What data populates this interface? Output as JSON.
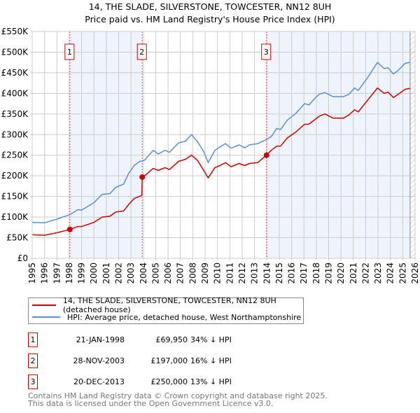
{
  "title": {
    "line1": "14, THE SLADE, SILVERSTONE, TOWCESTER, NN12 8UH",
    "line2": "Price paid vs. HM Land Registry's House Price Index (HPI)"
  },
  "chart_data": {
    "type": "line",
    "title": "14, THE SLADE, SILVERSTONE, TOWCESTER, NN12 8UH - Price paid vs. HM Land Registry's House Price Index (HPI)",
    "xlim": [
      1995,
      2026
    ],
    "ylim": [
      0,
      550000
    ],
    "xticks": [
      "1995",
      "1996",
      "1997",
      "1998",
      "1999",
      "2000",
      "2001",
      "2002",
      "2003",
      "2004",
      "2005",
      "2006",
      "2007",
      "2008",
      "2009",
      "2010",
      "2011",
      "2012",
      "2013",
      "2014",
      "2015",
      "2016",
      "2017",
      "2018",
      "2019",
      "2020",
      "2021",
      "2022",
      "2023",
      "2024",
      "2025",
      "2026"
    ],
    "yticks": [
      {
        "v": 0,
        "label": "£0"
      },
      {
        "v": 50000,
        "label": "£50K"
      },
      {
        "v": 100000,
        "label": "£100K"
      },
      {
        "v": 150000,
        "label": "£150K"
      },
      {
        "v": 200000,
        "label": "£200K"
      },
      {
        "v": 250000,
        "label": "£250K"
      },
      {
        "v": 300000,
        "label": "£300K"
      },
      {
        "v": 350000,
        "label": "£350K"
      },
      {
        "v": 400000,
        "label": "£400K"
      },
      {
        "v": 450000,
        "label": "£450K"
      },
      {
        "v": 500000,
        "label": "£500K"
      },
      {
        "v": 550000,
        "label": "£550K"
      }
    ],
    "grid": true,
    "shaded_ranges": [
      [
        1998.05,
        2003.91
      ],
      [
        2013.97,
        2025.6
      ]
    ],
    "forecast_hatch_from": 2025.6,
    "colors": {
      "property": "#cc0000",
      "hpi": "#5b8fd0",
      "shade": "#eef3fc",
      "marker_line": "#e05050"
    },
    "series": [
      {
        "name": "14, THE SLADE, SILVERSTONE, TOWCESTER, NN12 8UH (detached house)",
        "x": [
          1995,
          1996,
          1997,
          1998.05,
          1998.7,
          1999,
          2000,
          2000.65,
          2001.3,
          2001.75,
          2002.4,
          2002.8,
          2003.25,
          2003.7,
          2003.88,
          2003.91,
          2004.1,
          2004.8,
          2005.2,
          2005.75,
          2006.1,
          2006.85,
          2007.4,
          2007.9,
          2008.4,
          2008.9,
          2009.25,
          2009.8,
          2010.2,
          2010.65,
          2011.1,
          2011.75,
          2012.2,
          2012.6,
          2013.25,
          2013.97,
          2014.35,
          2014.8,
          2015.1,
          2015.65,
          2016.3,
          2017.05,
          2017.4,
          2017.95,
          2018.25,
          2018.7,
          2019.35,
          2020.2,
          2020.65,
          2021.1,
          2021.4,
          2022.2,
          2022.95,
          2023.5,
          2023.8,
          2024.25,
          2024.6,
          2025.2,
          2025.6
        ],
        "y": [
          57000,
          56000,
          62000,
          69950,
          77000,
          77000,
          87000,
          100000,
          102000,
          112000,
          115000,
          130000,
          145000,
          150000,
          153000,
          197000,
          200000,
          218000,
          213000,
          220000,
          215000,
          235000,
          240000,
          250000,
          237000,
          212000,
          195000,
          220000,
          225000,
          232000,
          222000,
          230000,
          225000,
          230000,
          232000,
          250000,
          262000,
          272000,
          272000,
          292000,
          305000,
          325000,
          325000,
          338000,
          345000,
          350000,
          340000,
          340000,
          348000,
          360000,
          355000,
          385000,
          413000,
          400000,
          403000,
          390000,
          397000,
          410000,
          412000
        ]
      },
      {
        "name": "HPI: Average price, detached house, West Northamptonshire",
        "x": [
          1995,
          1996,
          1997,
          1998.05,
          1998.7,
          1999,
          2000,
          2000.65,
          2001.3,
          2001.75,
          2002.4,
          2002.8,
          2003.25,
          2003.7,
          2003.91,
          2004.1,
          2004.8,
          2005.2,
          2005.75,
          2006.1,
          2006.85,
          2007.4,
          2007.9,
          2008.4,
          2008.9,
          2009.25,
          2009.8,
          2010.2,
          2010.65,
          2011.1,
          2011.75,
          2012.2,
          2012.6,
          2013.25,
          2013.97,
          2014.35,
          2014.8,
          2015.1,
          2015.65,
          2016.3,
          2017.05,
          2017.4,
          2017.95,
          2018.25,
          2018.7,
          2019.35,
          2020.2,
          2020.65,
          2021.1,
          2021.4,
          2022.2,
          2022.95,
          2023.5,
          2023.8,
          2024.25,
          2024.6,
          2025.2,
          2025.6
        ],
        "y": [
          87000,
          86000,
          95000,
          106000,
          118000,
          117000,
          135000,
          155000,
          157000,
          172000,
          180000,
          205000,
          225000,
          235000,
          236000,
          238000,
          262000,
          253000,
          262000,
          257000,
          280000,
          284000,
          300000,
          282000,
          258000,
          232000,
          262000,
          270000,
          278000,
          267000,
          275000,
          268000,
          275000,
          278000,
          288000,
          295000,
          315000,
          312000,
          335000,
          350000,
          375000,
          372000,
          390000,
          398000,
          402000,
          392000,
          392000,
          398000,
          413000,
          407000,
          440000,
          475000,
          460000,
          462000,
          447000,
          455000,
          473000,
          475000
        ]
      }
    ],
    "sales": [
      {
        "label": "1",
        "x": 1998.05,
        "y": 69950
      },
      {
        "label": "2",
        "x": 2003.91,
        "y": 197000
      },
      {
        "label": "3",
        "x": 2013.97,
        "y": 250000
      }
    ]
  },
  "legend": {
    "property": "14, THE SLADE, SILVERSTONE, TOWCESTER, NN12 8UH (detached house)",
    "hpi": "HPI: Average price, detached house, West Northamptonshire"
  },
  "transactions": [
    {
      "num": "1",
      "date": "21-JAN-1998",
      "price": "£69,950",
      "hpi": "34% ↓ HPI"
    },
    {
      "num": "2",
      "date": "28-NOV-2003",
      "price": "£197,000",
      "hpi": "16% ↓ HPI"
    },
    {
      "num": "3",
      "date": "20-DEC-2013",
      "price": "£250,000",
      "hpi": "13% ↓ HPI"
    }
  ],
  "footer": {
    "line1": "Contains HM Land Registry data © Crown copyright and database right 2025.",
    "line2": "This data is licensed under the Open Government Licence v3.0."
  }
}
